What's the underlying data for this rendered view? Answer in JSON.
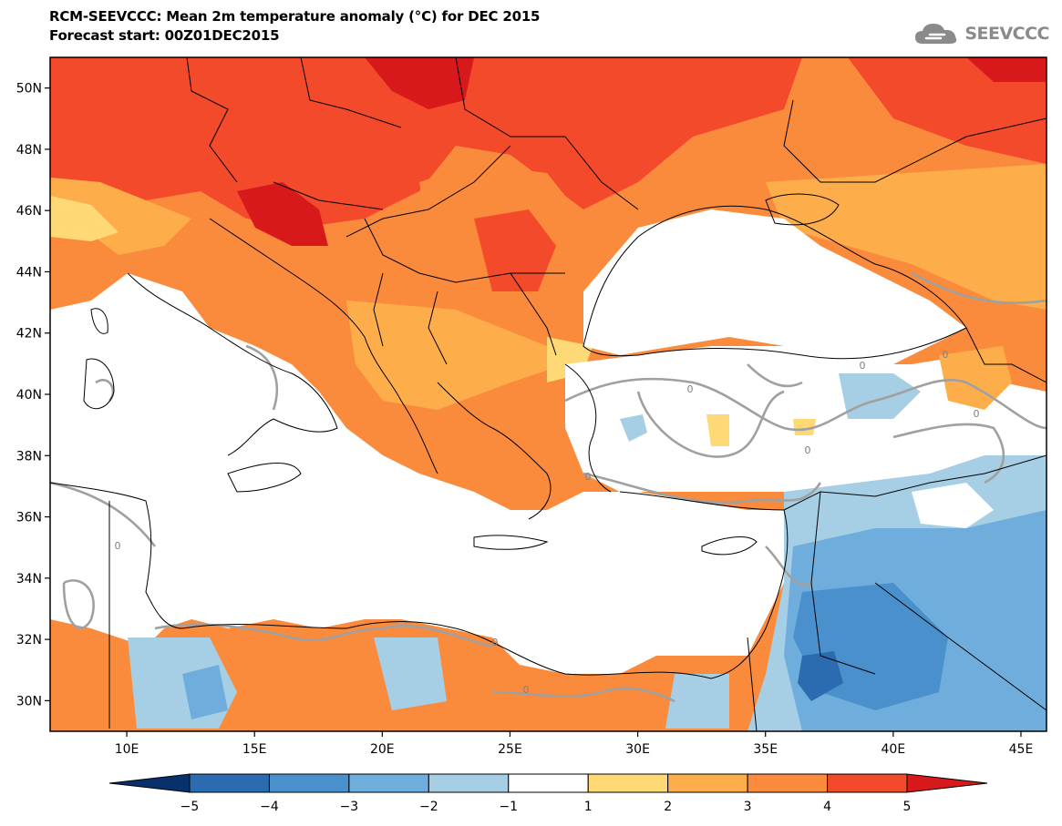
{
  "header": {
    "title_line1": "RCM-SEEVCCC: Mean 2m temperature anomaly (°C) for DEC 2015",
    "title_line2": "Forecast start: 00Z01DEC2015",
    "logo_text": "SEEVCCC"
  },
  "map": {
    "lon_range": [
      7,
      46
    ],
    "lat_range": [
      29,
      51
    ],
    "lat_ticks": [
      "50N",
      "48N",
      "46N",
      "44N",
      "42N",
      "40N",
      "38N",
      "36N",
      "34N",
      "32N",
      "30N"
    ],
    "lon_ticks": [
      "10E",
      "15E",
      "20E",
      "25E",
      "30E",
      "35E",
      "40E",
      "45E"
    ],
    "contour_label": "0"
  },
  "colorbar": {
    "labels": [
      "−5",
      "−4",
      "−3",
      "−2",
      "−1",
      "1",
      "2",
      "3",
      "4",
      "5"
    ],
    "colors": [
      "#08306b",
      "#2b6cb0",
      "#4a90cc",
      "#6faedc",
      "#a6cfe6",
      "#ffffff",
      "#fed976",
      "#fdae4b",
      "#fb8b3c",
      "#f24a2a",
      "#d7191c"
    ]
  }
}
